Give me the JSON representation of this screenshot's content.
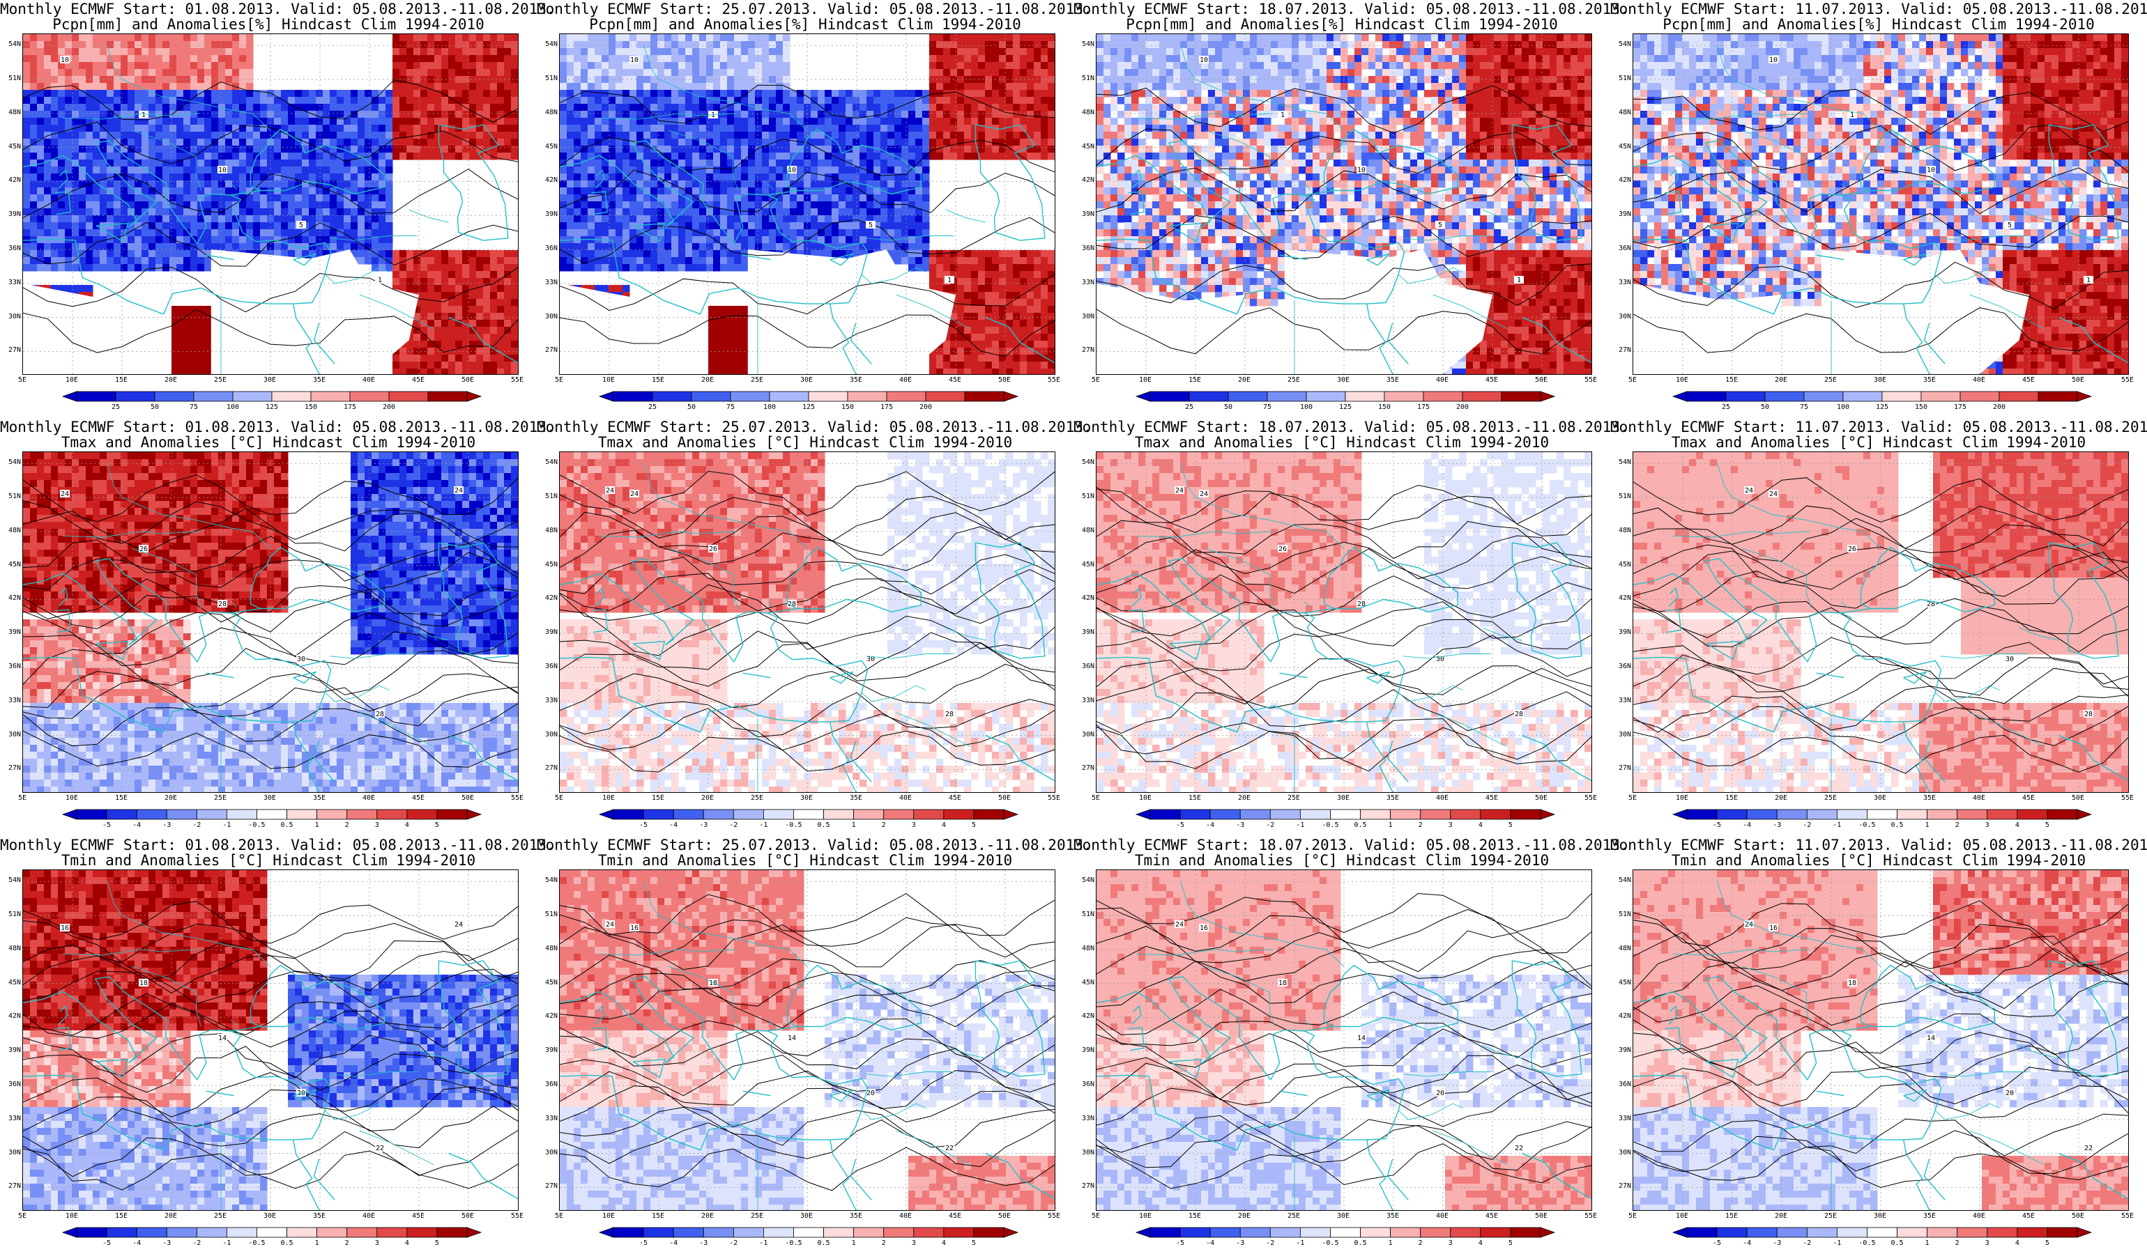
{
  "rows": [
    {
      "variable_line": "Pcpn[mm] and Anomalies[%] Hindcast Clim 1994-2010",
      "colorbar_labels": [
        "25",
        "50",
        "75",
        "100",
        "125",
        "150",
        "175",
        "200"
      ],
      "field_kind": "precip"
    },
    {
      "variable_line": "Tmax and Anomalies [°C] Hindcast Clim 1994-2010",
      "colorbar_labels": [
        "-5",
        "-4",
        "-3",
        "-2",
        "-1",
        "-0.5",
        "0.5",
        "1",
        "2",
        "3",
        "4",
        "5"
      ],
      "field_kind": "tmax"
    },
    {
      "variable_line": "Tmin and Anomalies [°C] Hindcast Clim 1994-2010",
      "colorbar_labels": [
        "-5",
        "-4",
        "-3",
        "-2",
        "-1",
        "-0.5",
        "0.5",
        "1",
        "2",
        "3",
        "4",
        "5"
      ],
      "field_kind": "tmin"
    }
  ],
  "columns": [
    {
      "header_line": "Monthly ECMWF Start: 01.08.2013. Valid: 05.08.2013.-11.08.2013."
    },
    {
      "header_line": "Monthly ECMWF Start: 25.07.2013. Valid: 05.08.2013.-11.08.2013."
    },
    {
      "header_line": "Monthly ECMWF Start: 18.07.2013. Valid: 05.08.2013.-11.08.2013."
    },
    {
      "header_line": "Monthly ECMWF Start: 11.07.2013. Valid: 05.08.2013.-11.08.2013."
    }
  ],
  "axes": {
    "lat_labels": [
      "54N",
      "51N",
      "48N",
      "45N",
      "42N",
      "39N",
      "36N",
      "33N",
      "30N",
      "27N"
    ],
    "lon_labels": [
      "5E",
      "10E",
      "15E",
      "20E",
      "25E",
      "30E",
      "35E",
      "40E",
      "45E",
      "50E",
      "55E"
    ],
    "lat_range": [
      25,
      55
    ],
    "lon_range": [
      5,
      55
    ]
  },
  "colors": {
    "negative": [
      "#0000c8",
      "#1e32e6",
      "#4060f0",
      "#7890f5",
      "#aab8fa",
      "#dde3fc"
    ],
    "neutral": "#ffffff",
    "positive": [
      "#fcdcdc",
      "#f8b0b0",
      "#f07a7a",
      "#e24a4a",
      "#cc2020",
      "#a00000"
    ],
    "coastline": "#20c0c8",
    "contour": "#000000"
  },
  "contour_labels": {
    "precip": [
      "10",
      "1",
      "10",
      "5",
      "1"
    ],
    "tmax": [
      "24",
      "26",
      "28",
      "30",
      "28",
      "24"
    ],
    "tmin": [
      "16",
      "18",
      "14",
      "20",
      "22",
      "24"
    ]
  }
}
